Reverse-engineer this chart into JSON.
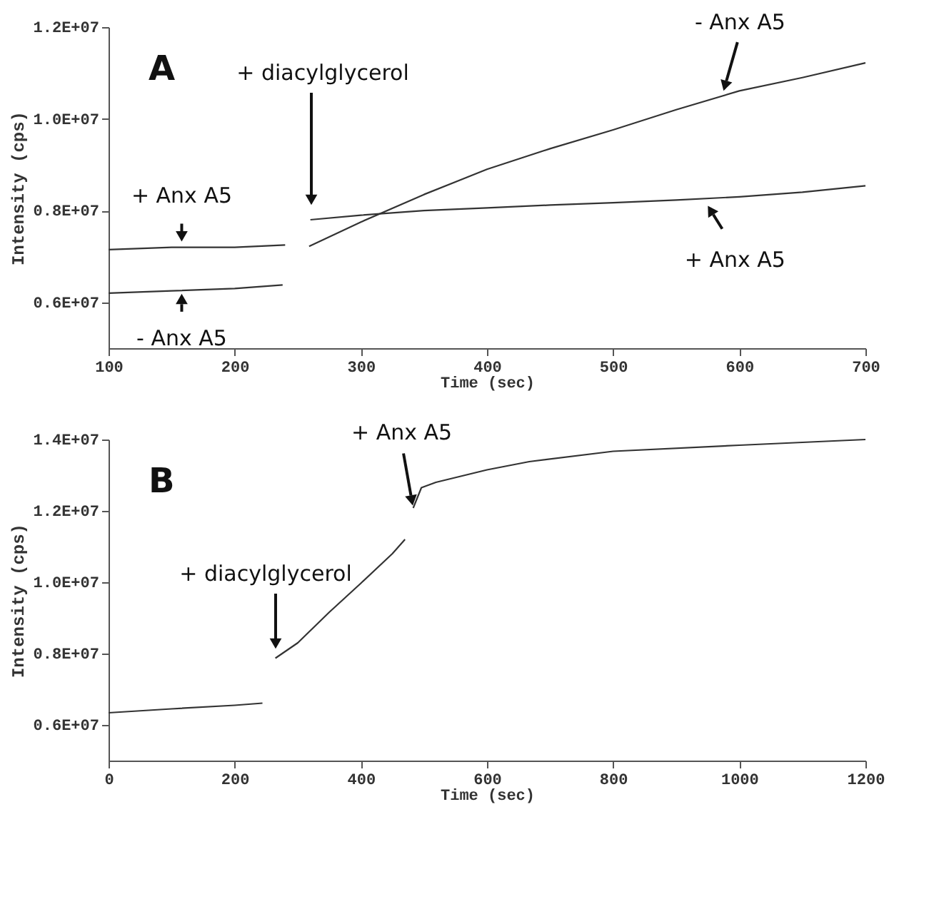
{
  "chart_data": [
    {
      "type": "line",
      "xlabel": "Time (sec)",
      "ylabel": "Intensity (cps)",
      "xlim": [
        100,
        700
      ],
      "xticks": [
        100,
        200,
        300,
        400,
        500,
        600,
        700
      ],
      "ylim": [
        5000000,
        12000000
      ],
      "yticks": [
        {
          "value": 6000000,
          "label": "0.6E+07"
        },
        {
          "value": 8000000,
          "label": "0.8E+07"
        },
        {
          "value": 10000000,
          "label": "1.0E+07"
        },
        {
          "value": 12000000,
          "label": "1.2E+07"
        }
      ],
      "grid": false,
      "marker": "none",
      "line_style": "solid",
      "series": [
        {
          "color": "#333333",
          "x": [
            100,
            150,
            200,
            240,
            240.5,
            259.5,
            260,
            300,
            350,
            400,
            450,
            500,
            550,
            600,
            650,
            700
          ],
          "values": [
            7150000,
            7200000,
            7200000,
            7250000,
            null,
            null,
            7800000,
            7900000,
            8000000,
            8060000,
            8120000,
            8170000,
            8230000,
            8300000,
            8400000,
            8540000
          ]
        },
        {
          "color": "#333333",
          "x": [
            100,
            150,
            200,
            238,
            238.5,
            258.5,
            259,
            300,
            350,
            400,
            450,
            500,
            550,
            600,
            650,
            700
          ],
          "values": [
            6200000,
            6250000,
            6300000,
            6380000,
            null,
            null,
            7220000,
            7750000,
            8350000,
            8900000,
            9350000,
            9760000,
            10200000,
            10610000,
            10900000,
            11220000
          ]
        }
      ],
      "annotations": [
        "A",
        "+ diacylglycerol",
        {
          "text": "+ Anx A5",
          "x": 158,
          "y": 7270000
        },
        {
          "text": "- Anx A5",
          "x": 158,
          "y": 6240000
        },
        {
          "text": "- Anx A5",
          "x": 587,
          "y": 10560000
        },
        {
          "text": "+ Anx A5",
          "x": 574,
          "y": 8150000
        }
      ]
    },
    {
      "type": "line",
      "xlabel": "Time (sec)",
      "ylabel": "Intensity (cps)",
      "xlim": [
        0,
        1200
      ],
      "xticks": [
        0,
        200,
        400,
        600,
        800,
        1000,
        1200
      ],
      "ylim": [
        5000000,
        14000000
      ],
      "yticks": [
        {
          "value": 6000000,
          "label": "0.6E+07"
        },
        {
          "value": 8000000,
          "label": "0.8E+07"
        },
        {
          "value": 10000000,
          "label": "1.0E+07"
        },
        {
          "value": 12000000,
          "label": "1.2E+07"
        },
        {
          "value": 14000000,
          "label": "1.4E+07"
        }
      ],
      "grid": false,
      "marker": "none",
      "line_style": "solid",
      "series": [
        {
          "color": "#333333",
          "x": [
            0,
            100,
            200,
            244,
            244.5,
            264,
            264.5,
            300,
            350,
            400,
            450,
            470,
            470.5,
            482,
            483,
            496,
            519,
            600,
            667,
            800,
            1000,
            1200
          ],
          "values": [
            6340000,
            6450000,
            6550000,
            6610000,
            null,
            null,
            7870000,
            8300000,
            9160000,
            9970000,
            10800000,
            11200000,
            null,
            null,
            12080000,
            12650000,
            12800000,
            13150000,
            13380000,
            13670000,
            13840000,
            14000000
          ]
        }
      ],
      "annotations": [
        "B",
        "+ diacylglycerol",
        {
          "text": "+ Anx A5",
          "x": 483,
          "y": 12080000
        }
      ]
    }
  ]
}
